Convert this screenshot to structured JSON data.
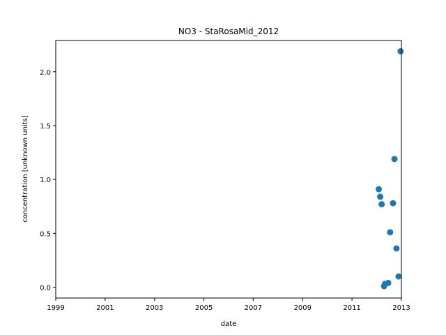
{
  "chart_data": {
    "type": "scatter",
    "title": "NO3 - StaRosaMid_2012",
    "xlabel": "date",
    "ylabel": "concentration [unknown units]",
    "xlim": [
      "1999-01-01",
      "2013-01-01"
    ],
    "ylim": [
      -0.1,
      2.29
    ],
    "x_ticks": [
      "1999",
      "2001",
      "2003",
      "2005",
      "2007",
      "2009",
      "2011",
      "2013"
    ],
    "y_ticks": [
      "0.0",
      "0.5",
      "1.0",
      "1.5",
      "2.0"
    ],
    "grid": false,
    "marker_color": "#1f77b4",
    "points": [
      {
        "x": "2012-02-01",
        "y": 0.91
      },
      {
        "x": "2012-02-22",
        "y": 0.84
      },
      {
        "x": "2012-03-15",
        "y": 0.77
      },
      {
        "x": "2012-04-20",
        "y": 0.01
      },
      {
        "x": "2012-05-03",
        "y": 0.03
      },
      {
        "x": "2012-06-20",
        "y": 0.04
      },
      {
        "x": "2012-07-18",
        "y": 0.51
      },
      {
        "x": "2012-08-30",
        "y": 0.78
      },
      {
        "x": "2012-09-20",
        "y": 1.19
      },
      {
        "x": "2012-10-20",
        "y": 0.36
      },
      {
        "x": "2012-11-20",
        "y": 0.1
      },
      {
        "x": "2012-12-20",
        "y": 2.19
      }
    ]
  }
}
